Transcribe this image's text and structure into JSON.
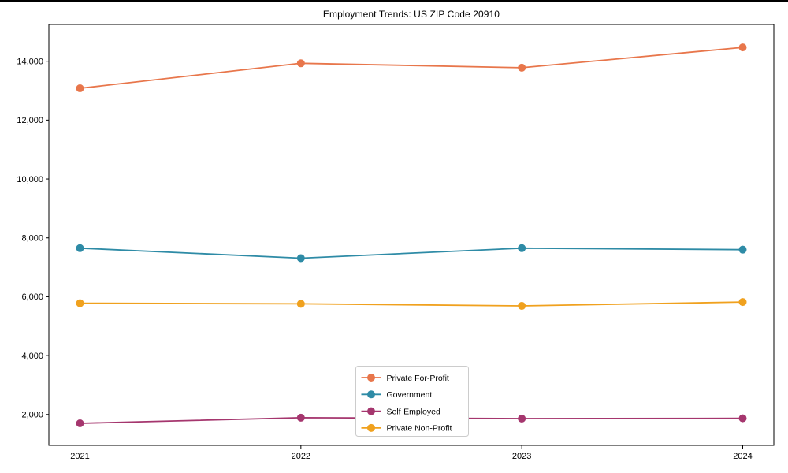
{
  "chart_data": {
    "type": "line",
    "title": "Employment Trends: US ZIP Code 20910",
    "x": [
      "2021",
      "2022",
      "2023",
      "2024"
    ],
    "series": [
      {
        "name": "Private For-Profit",
        "color": "#e8764b",
        "values": [
          13080,
          13930,
          13780,
          14470
        ]
      },
      {
        "name": "Government",
        "color": "#2e8ba6",
        "values": [
          7650,
          7310,
          7650,
          7600
        ]
      },
      {
        "name": "Self-Employed",
        "color": "#a5366e",
        "values": [
          1700,
          1890,
          1860,
          1870
        ]
      },
      {
        "name": "Private Non-Profit",
        "color": "#f0a11e",
        "values": [
          5780,
          5760,
          5690,
          5820
        ]
      }
    ],
    "xlabel": "",
    "ylabel": "",
    "ylim": [
      950,
      15250
    ],
    "yticks": [
      2000,
      4000,
      6000,
      8000,
      10000,
      12000,
      14000
    ],
    "grid": false,
    "legend_position": "lower center",
    "marker": "circle"
  }
}
